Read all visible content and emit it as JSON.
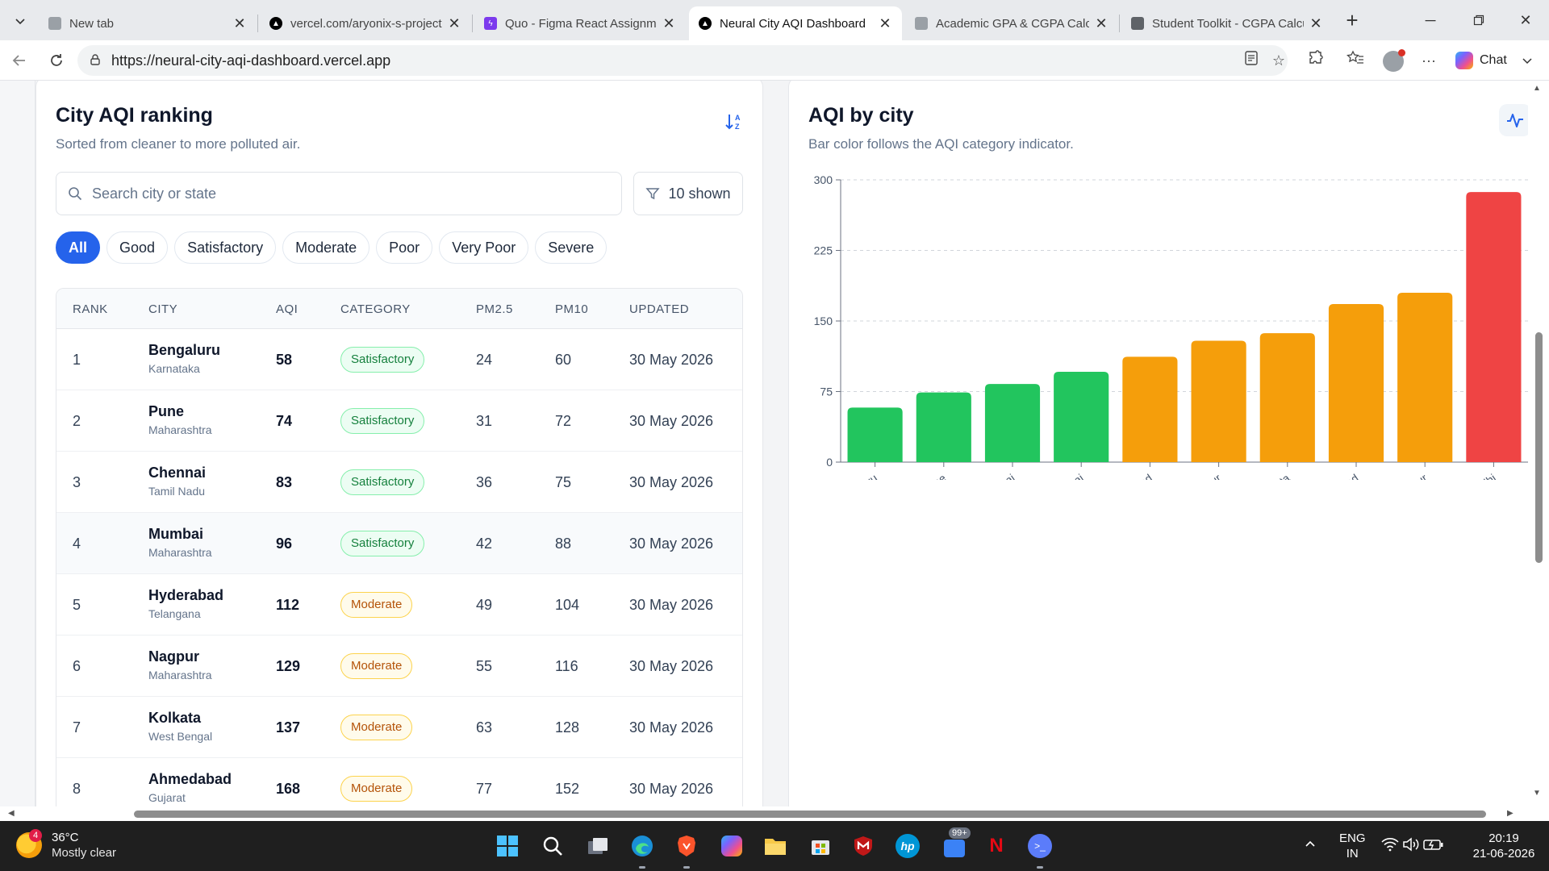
{
  "browser": {
    "tabs": [
      {
        "title": "New tab",
        "icon": "new-tab-icon",
        "color": "#9aa0a6"
      },
      {
        "title": "vercel.com/aryonix-s-projects",
        "icon": "vercel-icon",
        "color": "#000000"
      },
      {
        "title": "Quo - Figma React Assignment",
        "icon": "figma-bolt-icon",
        "color": "#7c3aed"
      },
      {
        "title": "Neural City AQI Dashboard",
        "icon": "vercel-icon",
        "color": "#000000",
        "active": true
      },
      {
        "title": "Academic GPA & CGPA Calculator",
        "icon": "document-icon",
        "color": "#9aa0a6"
      },
      {
        "title": "Student Toolkit - CGPA Calculator",
        "icon": "document-icon",
        "color": "#5f6368"
      }
    ],
    "url": "https://neural-city-aqi-dashboard.vercel.app",
    "chat_label": "Chat"
  },
  "ranking": {
    "title": "City AQI ranking",
    "subtitle": "Sorted from cleaner to more polluted air.",
    "search_placeholder": "Search city or state",
    "shown_label": "10 shown",
    "filters": [
      "All",
      "Good",
      "Satisfactory",
      "Moderate",
      "Poor",
      "Very Poor",
      "Severe"
    ],
    "active_filter": "All",
    "columns": [
      "RANK",
      "CITY",
      "AQI",
      "CATEGORY",
      "PM2.5",
      "PM10",
      "UPDATED"
    ],
    "rows": [
      {
        "rank": "1",
        "city": "Bengaluru",
        "state": "Karnataka",
        "aqi": "58",
        "category": "Satisfactory",
        "pm25": "24",
        "pm10": "60",
        "updated": "30 May 2026"
      },
      {
        "rank": "2",
        "city": "Pune",
        "state": "Maharashtra",
        "aqi": "74",
        "category": "Satisfactory",
        "pm25": "31",
        "pm10": "72",
        "updated": "30 May 2026"
      },
      {
        "rank": "3",
        "city": "Chennai",
        "state": "Tamil Nadu",
        "aqi": "83",
        "category": "Satisfactory",
        "pm25": "36",
        "pm10": "75",
        "updated": "30 May 2026"
      },
      {
        "rank": "4",
        "city": "Mumbai",
        "state": "Maharashtra",
        "aqi": "96",
        "category": "Satisfactory",
        "pm25": "42",
        "pm10": "88",
        "updated": "30 May 2026"
      },
      {
        "rank": "5",
        "city": "Hyderabad",
        "state": "Telangana",
        "aqi": "112",
        "category": "Moderate",
        "pm25": "49",
        "pm10": "104",
        "updated": "30 May 2026"
      },
      {
        "rank": "6",
        "city": "Nagpur",
        "state": "Maharashtra",
        "aqi": "129",
        "category": "Moderate",
        "pm25": "55",
        "pm10": "116",
        "updated": "30 May 2026"
      },
      {
        "rank": "7",
        "city": "Kolkata",
        "state": "West Bengal",
        "aqi": "137",
        "category": "Moderate",
        "pm25": "63",
        "pm10": "128",
        "updated": "30 May 2026"
      },
      {
        "rank": "8",
        "city": "Ahmedabad",
        "state": "Gujarat",
        "aqi": "168",
        "category": "Moderate",
        "pm25": "77",
        "pm10": "152",
        "updated": "30 May 2026"
      }
    ]
  },
  "chart_panel": {
    "title": "AQI by city",
    "subtitle": "Bar color follows the AQI category indicator."
  },
  "chart_data": {
    "type": "bar",
    "categories": [
      "Bengaluru",
      "Pune",
      "Chennai",
      "Mumbai",
      "Hyderabad",
      "Nagpur",
      "Kolkata",
      "Ahmedabad",
      "Jaipur",
      "Delhi"
    ],
    "values": [
      58,
      74,
      83,
      96,
      112,
      129,
      137,
      168,
      180,
      287
    ],
    "colors": [
      "#22c55e",
      "#22c55e",
      "#22c55e",
      "#22c55e",
      "#f59e0b",
      "#f59e0b",
      "#f59e0b",
      "#f59e0b",
      "#f59e0b",
      "#ef4444"
    ],
    "yticks": [
      0,
      75,
      150,
      225,
      300
    ],
    "ylim": [
      0,
      300
    ],
    "grid": true,
    "xlabel": "",
    "ylabel": ""
  },
  "taskbar": {
    "weather_badge": "4",
    "temperature": "36°C",
    "condition": "Mostly clear",
    "notif_badge": "99+",
    "language": "ENG",
    "region": "IN",
    "time": "20:19",
    "date": "21-06-2026"
  }
}
